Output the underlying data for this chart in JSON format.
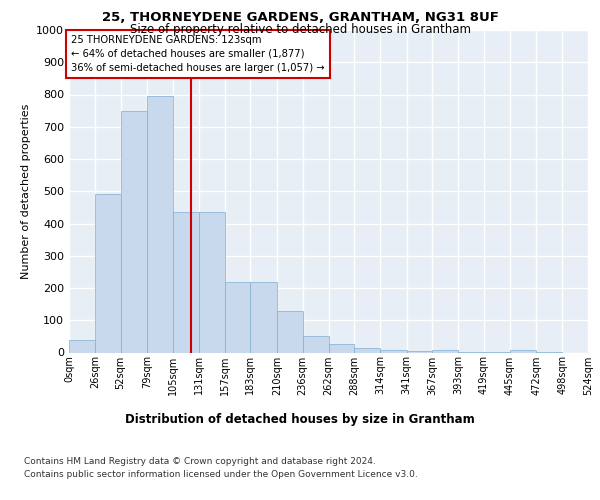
{
  "title1": "25, THORNEYDENE GARDENS, GRANTHAM, NG31 8UF",
  "title2": "Size of property relative to detached houses in Grantham",
  "xlabel": "Distribution of detached houses by size in Grantham",
  "ylabel": "Number of detached properties",
  "footnote1": "Contains HM Land Registry data © Crown copyright and database right 2024.",
  "footnote2": "Contains public sector information licensed under the Open Government Licence v3.0.",
  "bar_left_edges": [
    0,
    26,
    52,
    79,
    105,
    131,
    157,
    183,
    210,
    236,
    262,
    288,
    314,
    341,
    367,
    393,
    419,
    445,
    472,
    498
  ],
  "bar_widths": [
    26,
    26,
    27,
    26,
    26,
    26,
    26,
    27,
    26,
    26,
    26,
    26,
    27,
    26,
    26,
    26,
    26,
    27,
    26,
    26
  ],
  "bar_heights": [
    40,
    490,
    750,
    795,
    435,
    435,
    220,
    220,
    128,
    50,
    27,
    14,
    9,
    6,
    7,
    1,
    1,
    7,
    1,
    0
  ],
  "bar_color": "#c9d9ed",
  "bar_edge_color": "#7fafd0",
  "tick_labels": [
    "0sqm",
    "26sqm",
    "52sqm",
    "79sqm",
    "105sqm",
    "131sqm",
    "157sqm",
    "183sqm",
    "210sqm",
    "236sqm",
    "262sqm",
    "288sqm",
    "314sqm",
    "341sqm",
    "367sqm",
    "393sqm",
    "419sqm",
    "445sqm",
    "472sqm",
    "498sqm",
    "524sqm"
  ],
  "property_line_x": 123,
  "property_line_color": "#cc0000",
  "annotation_text": "25 THORNEYDENE GARDENS: 123sqm\n← 64% of detached houses are smaller (1,877)\n36% of semi-detached houses are larger (1,057) →",
  "annotation_box_color": "#cc0000",
  "ylim": [
    0,
    1000
  ],
  "yticks": [
    0,
    100,
    200,
    300,
    400,
    500,
    600,
    700,
    800,
    900,
    1000
  ],
  "background_color": "#e8eef5",
  "grid_color": "#ffffff",
  "fig_background": "#ffffff"
}
